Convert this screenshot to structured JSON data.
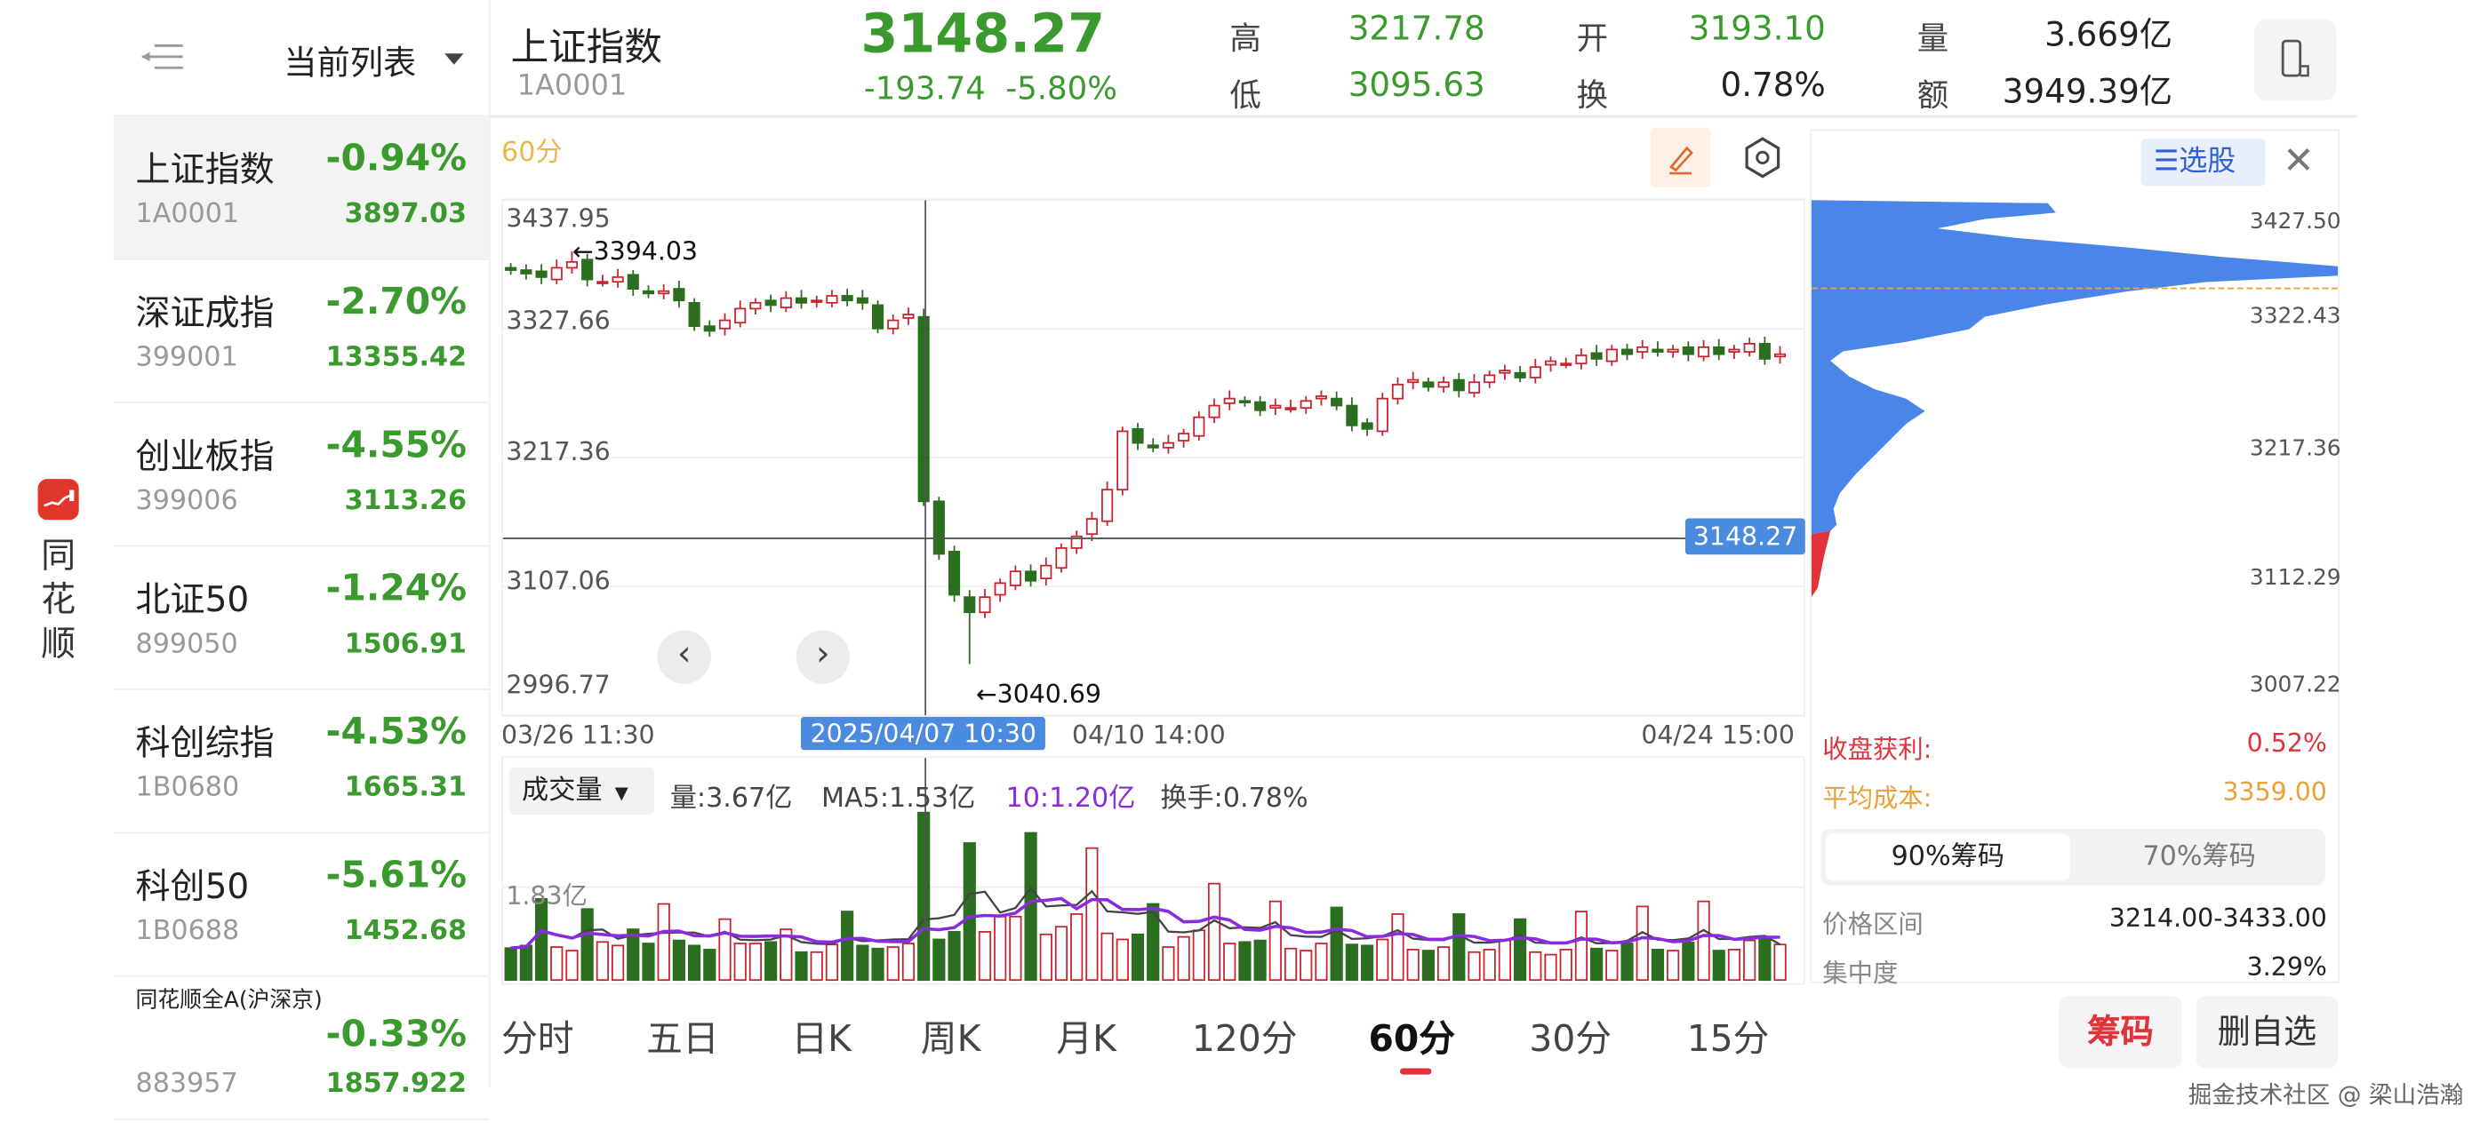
{
  "app": {
    "logo_text": "同花顺"
  },
  "sidebar": {
    "title": "当前列表",
    "items": [
      {
        "name": "上证指数",
        "code": "1A0001",
        "change": "-0.94%",
        "price": "3897.03",
        "selected": true
      },
      {
        "name": "深证成指",
        "code": "399001",
        "change": "-2.70%",
        "price": "13355.42"
      },
      {
        "name": "创业板指",
        "code": "399006",
        "change": "-4.55%",
        "price": "3113.26"
      },
      {
        "name": "北证50",
        "code": "899050",
        "change": "-1.24%",
        "price": "1506.91"
      },
      {
        "name": "科创综指",
        "code": "1B0680",
        "change": "-4.53%",
        "price": "1665.31"
      },
      {
        "name": "科创50",
        "code": "1B0688",
        "change": "-5.61%",
        "price": "1452.68"
      },
      {
        "name": "同花顺全A(沪深京)",
        "code": "883957",
        "change": "-0.33%",
        "price": "1857.922"
      }
    ]
  },
  "header": {
    "name": "上证指数",
    "code": "1A0001",
    "price": "3148.27",
    "change": "-193.74",
    "change_pct": "-5.80%",
    "high_label": "高",
    "high": "3217.78",
    "low_label": "低",
    "low": "3095.63",
    "open_label": "开",
    "open": "3193.10",
    "turnover_label": "换",
    "turnover": "0.78%",
    "volume_label": "量",
    "volume": "3.669亿",
    "amount_label": "额",
    "amount": "3949.39亿"
  },
  "chart": {
    "period": "60分",
    "price_axis": [
      "3437.95",
      "3327.66",
      "3217.36",
      "3107.06",
      "2996.77"
    ],
    "dates": {
      "start": "03/26 11:30",
      "selected": "2025/04/07 10:30",
      "mid": "04/10 14:00",
      "end": "04/24 15:00"
    },
    "current_price_tag": "3148.27",
    "high_marker": "3394.03",
    "low_marker": "3040.69",
    "volume": {
      "selector": "成交量",
      "vol": "量:3.67亿",
      "ma5": "MA5:1.53亿",
      "ma10": "10:1.20亿",
      "turnover": "换手:0.78%",
      "ref_label": "1.83亿"
    }
  },
  "chart_data": {
    "type": "candlestick",
    "ylim": [
      2996.77,
      3437.95
    ],
    "closes": [
      3378,
      3375,
      3372,
      3380,
      3385,
      3370,
      3368,
      3372,
      3362,
      3358,
      3360,
      3352,
      3330,
      3326,
      3335,
      3345,
      3350,
      3348,
      3354,
      3350,
      3352,
      3356,
      3352,
      3350,
      3328,
      3335,
      3340,
      3180,
      3135,
      3100,
      3085,
      3098,
      3110,
      3120,
      3112,
      3125,
      3140,
      3150,
      3165,
      3190,
      3240,
      3230,
      3226,
      3230,
      3238,
      3252,
      3262,
      3268,
      3265,
      3258,
      3262,
      3260,
      3266,
      3270,
      3262,
      3245,
      3242,
      3268,
      3280,
      3284,
      3278,
      3282,
      3275,
      3282,
      3288,
      3292,
      3286,
      3295,
      3300,
      3298,
      3305,
      3302,
      3310,
      3306,
      3312,
      3308,
      3310,
      3306,
      3312,
      3306,
      3310,
      3315,
      3302,
      3306
    ],
    "high_point": {
      "index": 4,
      "value": 3394.03
    },
    "low_point": {
      "index": 30,
      "value": 3040.69
    },
    "crosshair_index": 27,
    "current_price": 3148.27,
    "volumes": [
      0.63,
      0.68,
      1.6,
      0.65,
      0.58,
      1.4,
      0.75,
      0.68,
      1.0,
      0.72,
      1.5,
      0.78,
      0.68,
      0.6,
      1.2,
      0.72,
      0.72,
      0.75,
      1.0,
      0.55,
      0.55,
      0.7,
      1.35,
      0.68,
      0.62,
      0.65,
      0.72,
      3.3,
      0.8,
      0.95,
      2.7,
      0.95,
      1.25,
      1.25,
      2.9,
      0.9,
      1.05,
      1.3,
      2.6,
      0.92,
      0.8,
      0.9,
      1.5,
      0.65,
      0.85,
      0.98,
      1.9,
      0.72,
      0.75,
      0.78,
      1.55,
      0.62,
      0.58,
      0.72,
      1.43,
      0.7,
      0.68,
      0.8,
      1.3,
      0.6,
      0.58,
      0.65,
      1.3,
      0.55,
      0.6,
      0.78,
      1.2,
      0.55,
      0.5,
      0.6,
      1.35,
      0.62,
      0.58,
      0.72,
      1.45,
      0.6,
      0.58,
      0.74,
      1.55,
      0.58,
      0.6,
      0.78,
      0.85,
      0.7
    ],
    "volume_ylim": [
      0,
      4.13
    ],
    "colors": {
      "up": "#c8232c",
      "down": "#2b6e1f",
      "ma5": "#444444",
      "ma10": "#8a2be2"
    }
  },
  "chips": {
    "price_axis": [
      "3427.50",
      "3322.43",
      "3217.36",
      "3112.29",
      "3007.22"
    ],
    "select_label": "选股",
    "profit_label": "收盘获利:",
    "profit": "0.52%",
    "avg_cost_label": "平均成本:",
    "avg_cost": "3359.00",
    "seg": [
      "90%筹码",
      "70%筹码"
    ],
    "range_label": "价格区间",
    "range": "3214.00-3433.00",
    "conc_label": "集中度",
    "conc": "3.29%",
    "colors": {
      "profile": "#4a86e8",
      "profit": "#e0333a",
      "avg_line": "#e8a23a"
    }
  },
  "tabs": [
    "分时",
    "五日",
    "日K",
    "周K",
    "月K",
    "120分",
    "60分",
    "30分",
    "15分"
  ],
  "active_tab": "60分",
  "buttons": {
    "chips": "筹码",
    "remove": "删自选"
  },
  "watermark": "掘金技术社区 @ 梁山浩瀚"
}
